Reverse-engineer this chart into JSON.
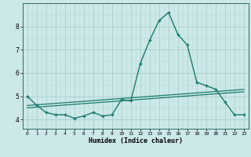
{
  "xlabel": "Humidex (Indice chaleur)",
  "x": [
    0,
    1,
    2,
    3,
    4,
    5,
    6,
    7,
    8,
    9,
    10,
    11,
    12,
    13,
    14,
    15,
    16,
    17,
    18,
    19,
    20,
    21,
    22,
    23
  ],
  "y_main": [
    5.0,
    4.6,
    4.3,
    4.2,
    4.2,
    4.05,
    4.15,
    4.3,
    4.15,
    4.2,
    4.85,
    4.8,
    6.4,
    7.4,
    8.25,
    8.6,
    7.65,
    7.2,
    5.6,
    5.45,
    5.3,
    4.75,
    4.2,
    4.2
  ],
  "y_trend1": [
    4.6,
    4.63,
    4.66,
    4.69,
    4.72,
    4.75,
    4.78,
    4.81,
    4.84,
    4.87,
    4.9,
    4.93,
    4.96,
    4.99,
    5.02,
    5.05,
    5.08,
    5.11,
    5.14,
    5.17,
    5.2,
    5.23,
    5.26,
    5.29
  ],
  "y_trend2": [
    4.5,
    4.53,
    4.56,
    4.59,
    4.62,
    4.65,
    4.68,
    4.71,
    4.74,
    4.77,
    4.8,
    4.83,
    4.86,
    4.89,
    4.92,
    4.95,
    4.98,
    5.01,
    5.04,
    5.07,
    5.1,
    5.13,
    5.16,
    5.19
  ],
  "line_color": "#1a7a6e",
  "bg_color": "#cce8e8",
  "grid_major_color": "#aacfcf",
  "grid_minor_color": "#bbdcdc",
  "ylim": [
    3.6,
    9.0
  ],
  "xlim": [
    -0.5,
    23.5
  ],
  "yticks": [
    4,
    5,
    6,
    7,
    8
  ],
  "xticks": [
    0,
    1,
    2,
    3,
    4,
    5,
    6,
    7,
    8,
    9,
    10,
    11,
    12,
    13,
    14,
    15,
    16,
    17,
    18,
    19,
    20,
    21,
    22,
    23
  ]
}
